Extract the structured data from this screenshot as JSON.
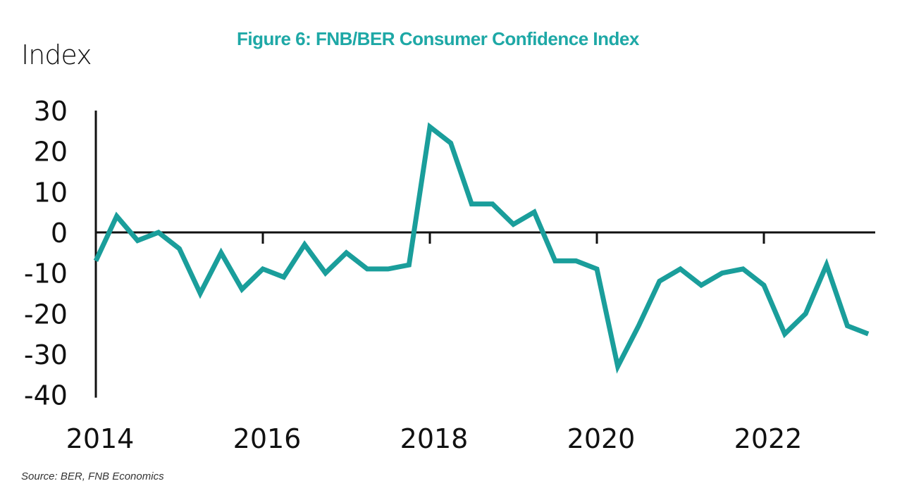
{
  "chart_data": {
    "type": "line",
    "title": "Figure 6: FNB/BER Consumer Confidence Index",
    "ylabel": "Index",
    "xlabel": "",
    "source": "Source: BER, FNB Economics",
    "ylim": [
      -40,
      30
    ],
    "yticks": [
      30,
      20,
      10,
      0,
      -10,
      -20,
      -30,
      -40
    ],
    "xticks": [
      "2014",
      "2016",
      "2018",
      "2020",
      "2022"
    ],
    "grid": false,
    "line_color": "#1a9e9b",
    "x": [
      "2014Q1",
      "2014Q2",
      "2014Q3",
      "2014Q4",
      "2015Q1",
      "2015Q2",
      "2015Q3",
      "2015Q4",
      "2016Q1",
      "2016Q2",
      "2016Q3",
      "2016Q4",
      "2017Q1",
      "2017Q2",
      "2017Q3",
      "2017Q4",
      "2018Q1",
      "2018Q2",
      "2018Q3",
      "2018Q4",
      "2019Q1",
      "2019Q2",
      "2019Q3",
      "2019Q4",
      "2020Q1",
      "2020Q2",
      "2020Q3",
      "2020Q4",
      "2021Q1",
      "2021Q2",
      "2021Q3",
      "2021Q4",
      "2022Q1",
      "2022Q2",
      "2022Q3",
      "2022Q4",
      "2023Q1",
      "2023Q2"
    ],
    "values": [
      -7,
      4,
      -2,
      0,
      -4,
      -15,
      -5,
      -14,
      -9,
      -11,
      -3,
      -10,
      -5,
      -9,
      -9,
      -8,
      26,
      22,
      7,
      7,
      2,
      5,
      -7,
      -7,
      -9,
      -33,
      -23,
      -12,
      -9,
      -13,
      -10,
      -9,
      -13,
      -25,
      -20,
      -8,
      -23,
      -25
    ]
  }
}
